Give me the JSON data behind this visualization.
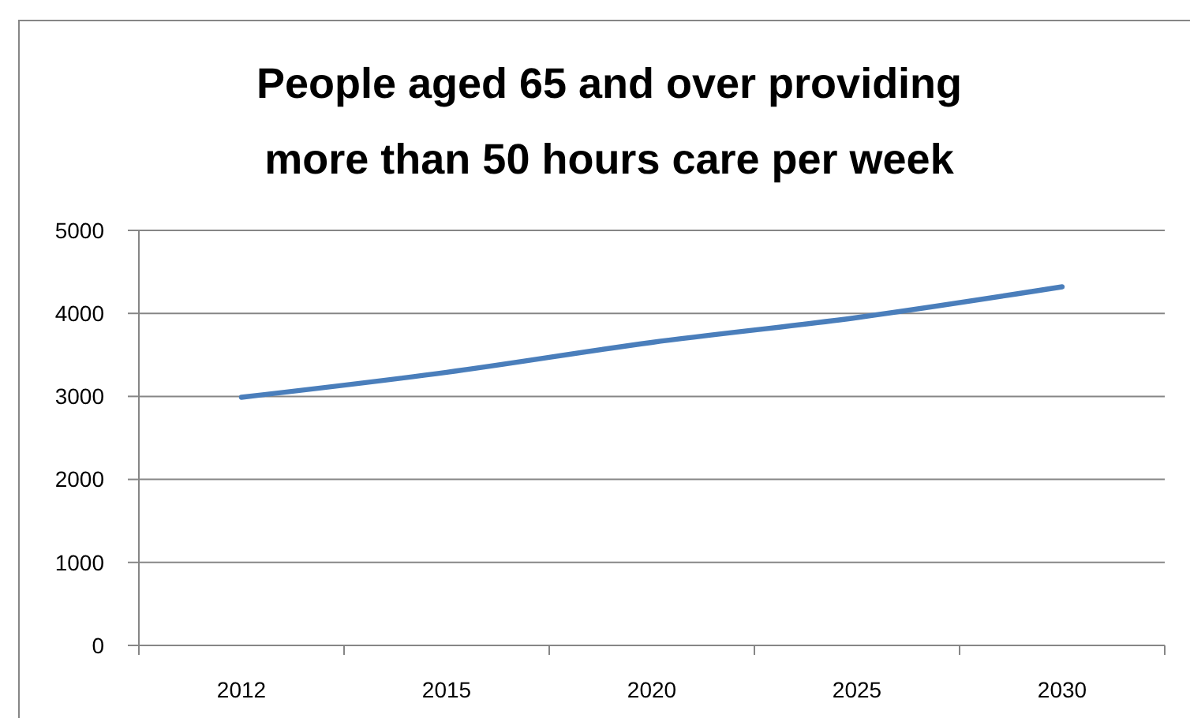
{
  "chart_data": {
    "type": "line",
    "title": "People aged 65 and over providing more than 50 hours care per week",
    "categories": [
      "2012",
      "2015",
      "2020",
      "2025",
      "2030"
    ],
    "series": [
      {
        "color": "#4a7ebb",
        "values": [
          2990,
          3290,
          3650,
          3950,
          4320
        ]
      }
    ],
    "ylim": [
      0,
      5000
    ],
    "yticks": [
      0,
      1000,
      2000,
      3000,
      4000,
      5000
    ],
    "grid": "y"
  }
}
